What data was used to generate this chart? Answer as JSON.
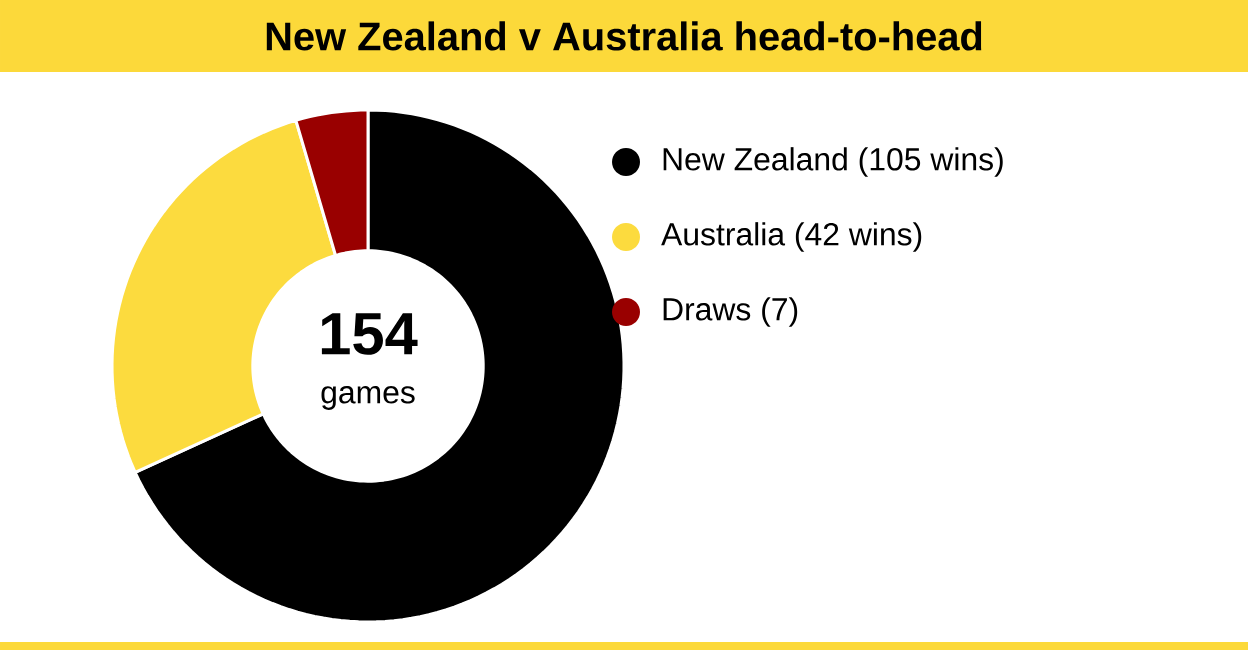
{
  "chart_data": {
    "type": "donut",
    "title": "New Zealand v Australia head-to-head",
    "categories": [
      "New Zealand (105 wins)",
      "Australia (42 wins)",
      "Draws (7)"
    ],
    "values": [
      105,
      42,
      7
    ],
    "colors": [
      "#000000",
      "#fcdb3e",
      "#990000"
    ],
    "annotations": [
      "154",
      "games"
    ],
    "legend": "right"
  }
}
